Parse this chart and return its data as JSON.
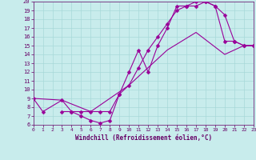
{
  "xlabel": "Windchill (Refroidissement éolien,°C)",
  "background_color": "#c8ecec",
  "grid_color": "#a8d8d8",
  "line_color": "#990099",
  "xlim": [
    0,
    23
  ],
  "ylim": [
    6,
    20
  ],
  "xticks": [
    0,
    1,
    2,
    3,
    4,
    5,
    6,
    7,
    8,
    9,
    10,
    11,
    12,
    13,
    14,
    15,
    16,
    17,
    18,
    19,
    20,
    21,
    22,
    23
  ],
  "yticks": [
    6,
    7,
    8,
    9,
    10,
    11,
    12,
    13,
    14,
    15,
    16,
    17,
    18,
    19,
    20
  ],
  "line1_x": [
    0,
    1,
    3,
    4,
    5,
    6,
    7,
    8,
    9,
    10,
    11,
    12,
    13,
    14,
    15,
    16,
    17,
    18,
    19,
    20,
    21,
    22,
    23
  ],
  "line1_y": [
    9,
    7.5,
    8.8,
    7.5,
    7.0,
    6.5,
    6.2,
    6.5,
    9.5,
    12,
    14.5,
    12.0,
    15.0,
    17.0,
    19.5,
    19.5,
    20.0,
    20.0,
    19.5,
    18.5,
    15.5,
    15.0,
    15.0
  ],
  "line2_x": [
    3,
    4,
    5,
    6,
    7,
    8,
    9,
    10,
    11,
    12,
    13,
    14,
    15,
    16,
    17,
    18,
    19,
    20,
    21,
    22,
    23
  ],
  "line2_y": [
    7.5,
    7.5,
    7.5,
    7.5,
    7.5,
    7.5,
    9.5,
    10.5,
    12.5,
    14.5,
    16.0,
    17.5,
    19.0,
    19.5,
    19.5,
    20.0,
    19.5,
    15.5,
    15.5,
    15.0,
    15.0
  ],
  "line3_x": [
    0,
    3,
    6,
    10,
    14,
    17,
    20,
    22,
    23
  ],
  "line3_y": [
    9,
    8.8,
    7.5,
    10.5,
    14.5,
    16.5,
    14.0,
    15.0,
    15.0
  ]
}
